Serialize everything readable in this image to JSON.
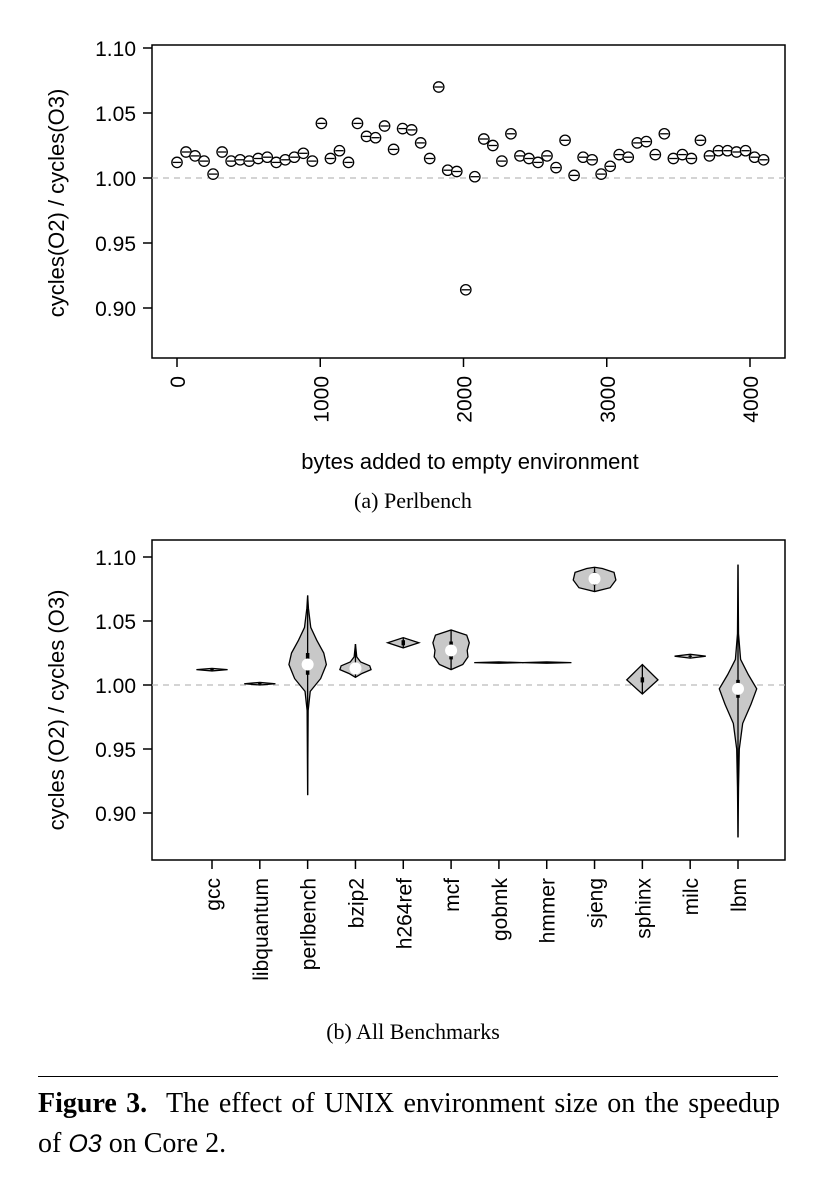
{
  "chart_data": [
    {
      "id": "a",
      "type": "scatter",
      "ylabel": "cycles(O2) / cycles(O3)",
      "xlabel": "bytes added to empty environment",
      "xlim": [
        -100,
        4300
      ],
      "ylim": [
        0.86,
        1.1
      ],
      "x_ticks": [
        0,
        1000,
        2000,
        3000,
        4000
      ],
      "y_ticks": [
        "0.90",
        "0.95",
        "1.00",
        "1.05",
        "1.10"
      ],
      "reference_line": 1.0,
      "points": [
        [
          0,
          1.012
        ],
        [
          63,
          1.02
        ],
        [
          126,
          1.017
        ],
        [
          189,
          1.013
        ],
        [
          252,
          1.003
        ],
        [
          315,
          1.02
        ],
        [
          378,
          1.013
        ],
        [
          441,
          1.014
        ],
        [
          504,
          1.013
        ],
        [
          567,
          1.015
        ],
        [
          630,
          1.016
        ],
        [
          693,
          1.012
        ],
        [
          756,
          1.014
        ],
        [
          819,
          1.016
        ],
        [
          882,
          1.019
        ],
        [
          945,
          1.013
        ],
        [
          1008,
          1.042
        ],
        [
          1071,
          1.015
        ],
        [
          1134,
          1.021
        ],
        [
          1197,
          1.012
        ],
        [
          1260,
          1.042
        ],
        [
          1323,
          1.032
        ],
        [
          1386,
          1.031
        ],
        [
          1449,
          1.04
        ],
        [
          1512,
          1.022
        ],
        [
          1575,
          1.038
        ],
        [
          1638,
          1.037
        ],
        [
          1701,
          1.027
        ],
        [
          1764,
          1.015
        ],
        [
          1827,
          1.07
        ],
        [
          1890,
          1.006
        ],
        [
          1953,
          1.005
        ],
        [
          2016,
          0.914
        ],
        [
          2079,
          1.001
        ],
        [
          2142,
          1.03
        ],
        [
          2205,
          1.025
        ],
        [
          2268,
          1.013
        ],
        [
          2331,
          1.034
        ],
        [
          2394,
          1.017
        ],
        [
          2457,
          1.015
        ],
        [
          2520,
          1.012
        ],
        [
          2583,
          1.017
        ],
        [
          2646,
          1.008
        ],
        [
          2709,
          1.029
        ],
        [
          2772,
          1.002
        ],
        [
          2835,
          1.016
        ],
        [
          2898,
          1.014
        ],
        [
          2961,
          1.003
        ],
        [
          3024,
          1.009
        ],
        [
          3087,
          1.018
        ],
        [
          3150,
          1.016
        ],
        [
          3213,
          1.027
        ],
        [
          3276,
          1.028
        ],
        [
          3339,
          1.018
        ],
        [
          3402,
          1.034
        ],
        [
          3465,
          1.015
        ],
        [
          3528,
          1.018
        ],
        [
          3591,
          1.015
        ],
        [
          3654,
          1.029
        ],
        [
          3717,
          1.017
        ],
        [
          3780,
          1.021
        ],
        [
          3843,
          1.021
        ],
        [
          3906,
          1.02
        ],
        [
          3969,
          1.021
        ],
        [
          4032,
          1.016
        ],
        [
          4095,
          1.014
        ]
      ],
      "caption": "(a)  Perlbench"
    },
    {
      "id": "b",
      "type": "violin",
      "ylabel": "cycles (O2) / cycles (O3)",
      "ylim": [
        0.86,
        1.1
      ],
      "y_ticks": [
        "0.90",
        "0.95",
        "1.00",
        "1.05",
        "1.10"
      ],
      "reference_line": 1.0,
      "categories": [
        "gcc",
        "libquantum",
        "perlbench",
        "bzip2",
        "h264ref",
        "mcf",
        "gobmk",
        "hmmer",
        "sjeng",
        "sphinx",
        "milc",
        "lbm"
      ],
      "series": [
        {
          "min": 1.011,
          "max": 1.013,
          "median": 1.012,
          "q1": 1.0115,
          "q3": 1.0125,
          "show_median": false,
          "profile": [
            [
              1.011,
              0.0
            ],
            [
              1.012,
              0.6
            ],
            [
              1.013,
              0.0
            ]
          ]
        },
        {
          "min": 1.0,
          "max": 1.002,
          "median": 1.001,
          "q1": 1.0005,
          "q3": 1.0015,
          "show_median": false,
          "profile": [
            [
              1.0,
              0.0
            ],
            [
              1.001,
              0.6
            ],
            [
              1.002,
              0.0
            ]
          ]
        },
        {
          "min": 0.914,
          "max": 1.07,
          "median": 1.016,
          "q1": 1.008,
          "q3": 1.025,
          "show_median": true,
          "profile": [
            [
              0.914,
              0.0
            ],
            [
              0.98,
              0.02
            ],
            [
              0.995,
              0.1
            ],
            [
              1.005,
              0.5
            ],
            [
              1.016,
              0.72
            ],
            [
              1.025,
              0.62
            ],
            [
              1.035,
              0.35
            ],
            [
              1.045,
              0.12
            ],
            [
              1.06,
              0.03
            ],
            [
              1.07,
              0.0
            ]
          ]
        },
        {
          "min": 1.006,
          "max": 1.032,
          "median": 1.013,
          "q1": 1.011,
          "q3": 1.016,
          "show_median": true,
          "profile": [
            [
              1.006,
              0.0
            ],
            [
              1.009,
              0.25
            ],
            [
              1.012,
              0.6
            ],
            [
              1.015,
              0.55
            ],
            [
              1.018,
              0.2
            ],
            [
              1.022,
              0.05
            ],
            [
              1.032,
              0.0
            ]
          ]
        },
        {
          "min": 1.029,
          "max": 1.037,
          "median": 1.033,
          "q1": 1.031,
          "q3": 1.035,
          "show_median": false,
          "profile": [
            [
              1.029,
              0.0
            ],
            [
              1.033,
              0.6
            ],
            [
              1.037,
              0.0
            ]
          ]
        },
        {
          "min": 1.012,
          "max": 1.043,
          "median": 1.027,
          "q1": 1.02,
          "q3": 1.034,
          "show_median": true,
          "profile": [
            [
              1.012,
              0.0
            ],
            [
              1.016,
              0.45
            ],
            [
              1.022,
              0.65
            ],
            [
              1.027,
              0.62
            ],
            [
              1.033,
              0.7
            ],
            [
              1.039,
              0.6
            ],
            [
              1.043,
              0.0
            ]
          ]
        },
        {
          "min": 1.017,
          "max": 1.018,
          "median": 1.0175,
          "q1": 1.0172,
          "q3": 1.0178,
          "show_median": false,
          "profile": [
            [
              1.017,
              0.0
            ],
            [
              1.0175,
              0.95
            ],
            [
              1.018,
              0.0
            ]
          ]
        },
        {
          "min": 1.017,
          "max": 1.018,
          "median": 1.0175,
          "q1": 1.0172,
          "q3": 1.0178,
          "show_median": false,
          "profile": [
            [
              1.017,
              0.0
            ],
            [
              1.0175,
              0.95
            ],
            [
              1.018,
              0.0
            ]
          ]
        },
        {
          "min": 1.073,
          "max": 1.092,
          "median": 1.083,
          "q1": 1.078,
          "q3": 1.088,
          "show_median": true,
          "profile": [
            [
              1.073,
              0.0
            ],
            [
              1.076,
              0.6
            ],
            [
              1.082,
              0.82
            ],
            [
              1.088,
              0.75
            ],
            [
              1.091,
              0.3
            ],
            [
              1.092,
              0.0
            ]
          ]
        },
        {
          "min": 0.993,
          "max": 1.016,
          "median": 1.004,
          "q1": 1.002,
          "q3": 1.006,
          "show_median": false,
          "profile": [
            [
              0.993,
              0.0
            ],
            [
              1.004,
              0.6
            ],
            [
              1.016,
              0.0
            ]
          ]
        },
        {
          "min": 1.021,
          "max": 1.024,
          "median": 1.0225,
          "q1": 1.022,
          "q3": 1.023,
          "show_median": false,
          "profile": [
            [
              1.021,
              0.0
            ],
            [
              1.0225,
              0.6
            ],
            [
              1.024,
              0.0
            ]
          ]
        },
        {
          "min": 0.881,
          "max": 1.094,
          "median": 0.997,
          "q1": 0.99,
          "q3": 1.004,
          "show_median": true,
          "profile": [
            [
              0.881,
              0.0
            ],
            [
              0.92,
              0.02
            ],
            [
              0.95,
              0.05
            ],
            [
              0.97,
              0.18
            ],
            [
              0.985,
              0.5
            ],
            [
              0.997,
              0.72
            ],
            [
              1.008,
              0.4
            ],
            [
              1.02,
              0.1
            ],
            [
              1.04,
              0.02
            ],
            [
              1.094,
              0.0
            ]
          ]
        }
      ],
      "caption": "(b)  All Benchmarks"
    }
  ],
  "figure": {
    "label": "Figure 3.",
    "text_before": "The effect of UNIX environment size on the speedup of",
    "emph": "O3",
    "text_after": "on Core 2."
  }
}
